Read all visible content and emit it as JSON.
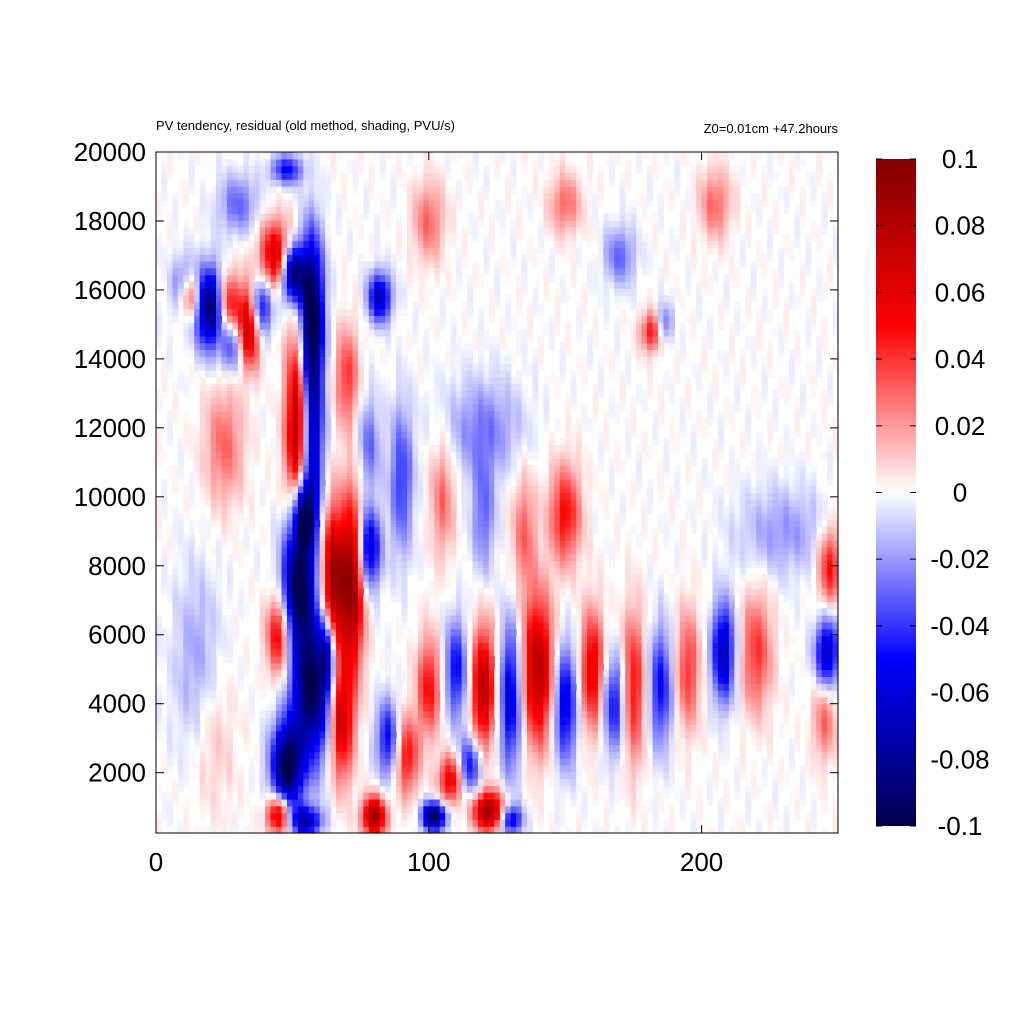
{
  "title_left": "PV tendency, residual (old method, shading, PVU/s)",
  "title_right": "Z0=0.01cm   +47.2hours",
  "chart_data": {
    "type": "heatmap",
    "title": "PV tendency, residual (old method, shading, PVU/s)",
    "annotation": "Z0=0.01cm   +47.2hours",
    "xlabel": "",
    "ylabel": "",
    "xlim": [
      0,
      250
    ],
    "ylim": [
      250,
      20000
    ],
    "x_ticks": [
      0,
      100,
      200
    ],
    "y_ticks": [
      2000,
      4000,
      6000,
      8000,
      10000,
      12000,
      14000,
      16000,
      18000,
      20000
    ],
    "colorbar": {
      "range": [
        -0.1,
        0.1
      ],
      "ticks": [
        0.1,
        0.08,
        0.06,
        0.04,
        0.02,
        0,
        -0.02,
        -0.04,
        -0.06,
        -0.08,
        -0.1
      ],
      "tick_labels": [
        "0.1",
        "0.08",
        "0.06",
        "0.04",
        "0.02",
        "0",
        "-0.02",
        "-0.04",
        "-0.06",
        "-0.08",
        "-0.1"
      ],
      "colormap": [
        "#00004d",
        "#0000ff",
        "#ffffff",
        "#ff0000",
        "#800000"
      ]
    },
    "grid": false,
    "features": [
      {
        "x": 50,
        "y": 16500,
        "v": -0.1,
        "sx": 3,
        "sy": 600
      },
      {
        "x": 57,
        "y": 15500,
        "v": -0.1,
        "sx": 3,
        "sy": 1500
      },
      {
        "x": 52,
        "y": 12000,
        "v": 0.09,
        "sx": 3,
        "sy": 2000
      },
      {
        "x": 57,
        "y": 12000,
        "v": -0.08,
        "sx": 3,
        "sy": 2000
      },
      {
        "x": 54,
        "y": 9500,
        "v": -0.09,
        "sx": 3,
        "sy": 800
      },
      {
        "x": 52,
        "y": 7500,
        "v": -0.1,
        "sx": 4,
        "sy": 1200
      },
      {
        "x": 57,
        "y": 4500,
        "v": -0.1,
        "sx": 5,
        "sy": 1500
      },
      {
        "x": 48,
        "y": 2200,
        "v": -0.1,
        "sx": 4,
        "sy": 900
      },
      {
        "x": 65,
        "y": 7500,
        "v": 0.09,
        "sx": 3,
        "sy": 1500
      },
      {
        "x": 72,
        "y": 7500,
        "v": 0.09,
        "sx": 3,
        "sy": 1800
      },
      {
        "x": 78,
        "y": 8500,
        "v": -0.07,
        "sx": 3,
        "sy": 800
      },
      {
        "x": 68,
        "y": 3500,
        "v": 0.07,
        "sx": 3,
        "sy": 1200
      },
      {
        "x": 63,
        "y": 5500,
        "v": -0.06,
        "sx": 2,
        "sy": 800
      },
      {
        "x": 45,
        "y": 6000,
        "v": 0.06,
        "sx": 3,
        "sy": 800
      },
      {
        "x": 44,
        "y": 17000,
        "v": 0.07,
        "sx": 4,
        "sy": 700
      },
      {
        "x": 34,
        "y": 15000,
        "v": 0.09,
        "sx": 3,
        "sy": 800
      },
      {
        "x": 38,
        "y": 15500,
        "v": -0.07,
        "sx": 3,
        "sy": 600
      },
      {
        "x": 20,
        "y": 15500,
        "v": -0.1,
        "sx": 4,
        "sy": 800
      },
      {
        "x": 12,
        "y": 15800,
        "v": 0.07,
        "sx": 3,
        "sy": 500
      },
      {
        "x": 26,
        "y": 15500,
        "v": 0.07,
        "sx": 3,
        "sy": 700
      },
      {
        "x": 28,
        "y": 14500,
        "v": -0.05,
        "sx": 3,
        "sy": 600
      },
      {
        "x": 10,
        "y": 16000,
        "v": -0.05,
        "sx": 3,
        "sy": 600
      },
      {
        "x": 82,
        "y": 15800,
        "v": -0.07,
        "sx": 3,
        "sy": 500
      },
      {
        "x": 140,
        "y": 5000,
        "v": 0.08,
        "sx": 4,
        "sy": 1500
      },
      {
        "x": 130,
        "y": 4200,
        "v": -0.06,
        "sx": 3,
        "sy": 1500
      },
      {
        "x": 120,
        "y": 4500,
        "v": 0.08,
        "sx": 3,
        "sy": 1200
      },
      {
        "x": 110,
        "y": 5000,
        "v": -0.05,
        "sx": 3,
        "sy": 1000
      },
      {
        "x": 100,
        "y": 4500,
        "v": 0.05,
        "sx": 3,
        "sy": 1000
      },
      {
        "x": 150,
        "y": 4000,
        "v": -0.06,
        "sx": 3,
        "sy": 1200
      },
      {
        "x": 160,
        "y": 5000,
        "v": 0.06,
        "sx": 3,
        "sy": 1200
      },
      {
        "x": 168,
        "y": 4000,
        "v": -0.05,
        "sx": 3,
        "sy": 1000
      },
      {
        "x": 175,
        "y": 4500,
        "v": 0.05,
        "sx": 3,
        "sy": 1500
      },
      {
        "x": 185,
        "y": 4500,
        "v": -0.05,
        "sx": 3,
        "sy": 1200
      },
      {
        "x": 195,
        "y": 5000,
        "v": 0.04,
        "sx": 3,
        "sy": 1200
      },
      {
        "x": 208,
        "y": 5500,
        "v": -0.07,
        "sx": 3,
        "sy": 1000
      },
      {
        "x": 220,
        "y": 5500,
        "v": 0.04,
        "sx": 4,
        "sy": 1200
      },
      {
        "x": 246,
        "y": 5500,
        "v": -0.07,
        "sx": 3,
        "sy": 700
      },
      {
        "x": 247,
        "y": 8000,
        "v": 0.05,
        "sx": 3,
        "sy": 800
      },
      {
        "x": 245,
        "y": 3500,
        "v": 0.03,
        "sx": 3,
        "sy": 800
      },
      {
        "x": 150,
        "y": 9500,
        "v": 0.05,
        "sx": 4,
        "sy": 1000
      },
      {
        "x": 135,
        "y": 9000,
        "v": 0.03,
        "sx": 3,
        "sy": 1200
      },
      {
        "x": 120,
        "y": 9500,
        "v": -0.03,
        "sx": 3,
        "sy": 1200
      },
      {
        "x": 105,
        "y": 10000,
        "v": 0.03,
        "sx": 3,
        "sy": 1200
      },
      {
        "x": 90,
        "y": 10500,
        "v": -0.04,
        "sx": 3,
        "sy": 1500
      },
      {
        "x": 80,
        "y": 750,
        "v": 0.09,
        "sx": 3,
        "sy": 400
      },
      {
        "x": 102,
        "y": 750,
        "v": -0.1,
        "sx": 3,
        "sy": 300
      },
      {
        "x": 122,
        "y": 900,
        "v": 0.09,
        "sx": 4,
        "sy": 400
      },
      {
        "x": 130,
        "y": 650,
        "v": -0.06,
        "sx": 3,
        "sy": 300
      },
      {
        "x": 45,
        "y": 800,
        "v": 0.08,
        "sx": 3,
        "sy": 400
      },
      {
        "x": 55,
        "y": 600,
        "v": -0.07,
        "sx": 4,
        "sy": 300
      },
      {
        "x": 108,
        "y": 1800,
        "v": 0.06,
        "sx": 3,
        "sy": 500
      },
      {
        "x": 115,
        "y": 2200,
        "v": -0.05,
        "sx": 3,
        "sy": 600
      },
      {
        "x": 92,
        "y": 2500,
        "v": 0.05,
        "sx": 3,
        "sy": 800
      },
      {
        "x": 85,
        "y": 3000,
        "v": -0.05,
        "sx": 3,
        "sy": 800
      },
      {
        "x": 30,
        "y": 18500,
        "v": -0.03,
        "sx": 5,
        "sy": 600
      },
      {
        "x": 48,
        "y": 19500,
        "v": -0.05,
        "sx": 4,
        "sy": 300
      },
      {
        "x": 100,
        "y": 18000,
        "v": 0.03,
        "sx": 4,
        "sy": 800
      },
      {
        "x": 150,
        "y": 18500,
        "v": 0.03,
        "sx": 4,
        "sy": 600
      },
      {
        "x": 170,
        "y": 17000,
        "v": -0.03,
        "sx": 4,
        "sy": 600
      },
      {
        "x": 205,
        "y": 18500,
        "v": 0.03,
        "sx": 4,
        "sy": 700
      },
      {
        "x": 182,
        "y": 14800,
        "v": 0.05,
        "sx": 3,
        "sy": 400
      },
      {
        "x": 186,
        "y": 15000,
        "v": -0.04,
        "sx": 2,
        "sy": 400
      },
      {
        "x": 25,
        "y": 11500,
        "v": 0.03,
        "sx": 5,
        "sy": 1200
      },
      {
        "x": 70,
        "y": 13500,
        "v": 0.04,
        "sx": 3,
        "sy": 1000
      },
      {
        "x": 78,
        "y": 11500,
        "v": -0.03,
        "sx": 3,
        "sy": 1000
      },
      {
        "x": 120,
        "y": 12000,
        "v": -0.025,
        "sx": 10,
        "sy": 1000
      },
      {
        "x": 230,
        "y": 9000,
        "v": -0.02,
        "sx": 12,
        "sy": 900
      },
      {
        "x": 15,
        "y": 5000,
        "v": -0.02,
        "sx": 6,
        "sy": 2000
      },
      {
        "x": 20,
        "y": 3000,
        "v": 0.015,
        "sx": 6,
        "sy": 1500
      }
    ]
  }
}
